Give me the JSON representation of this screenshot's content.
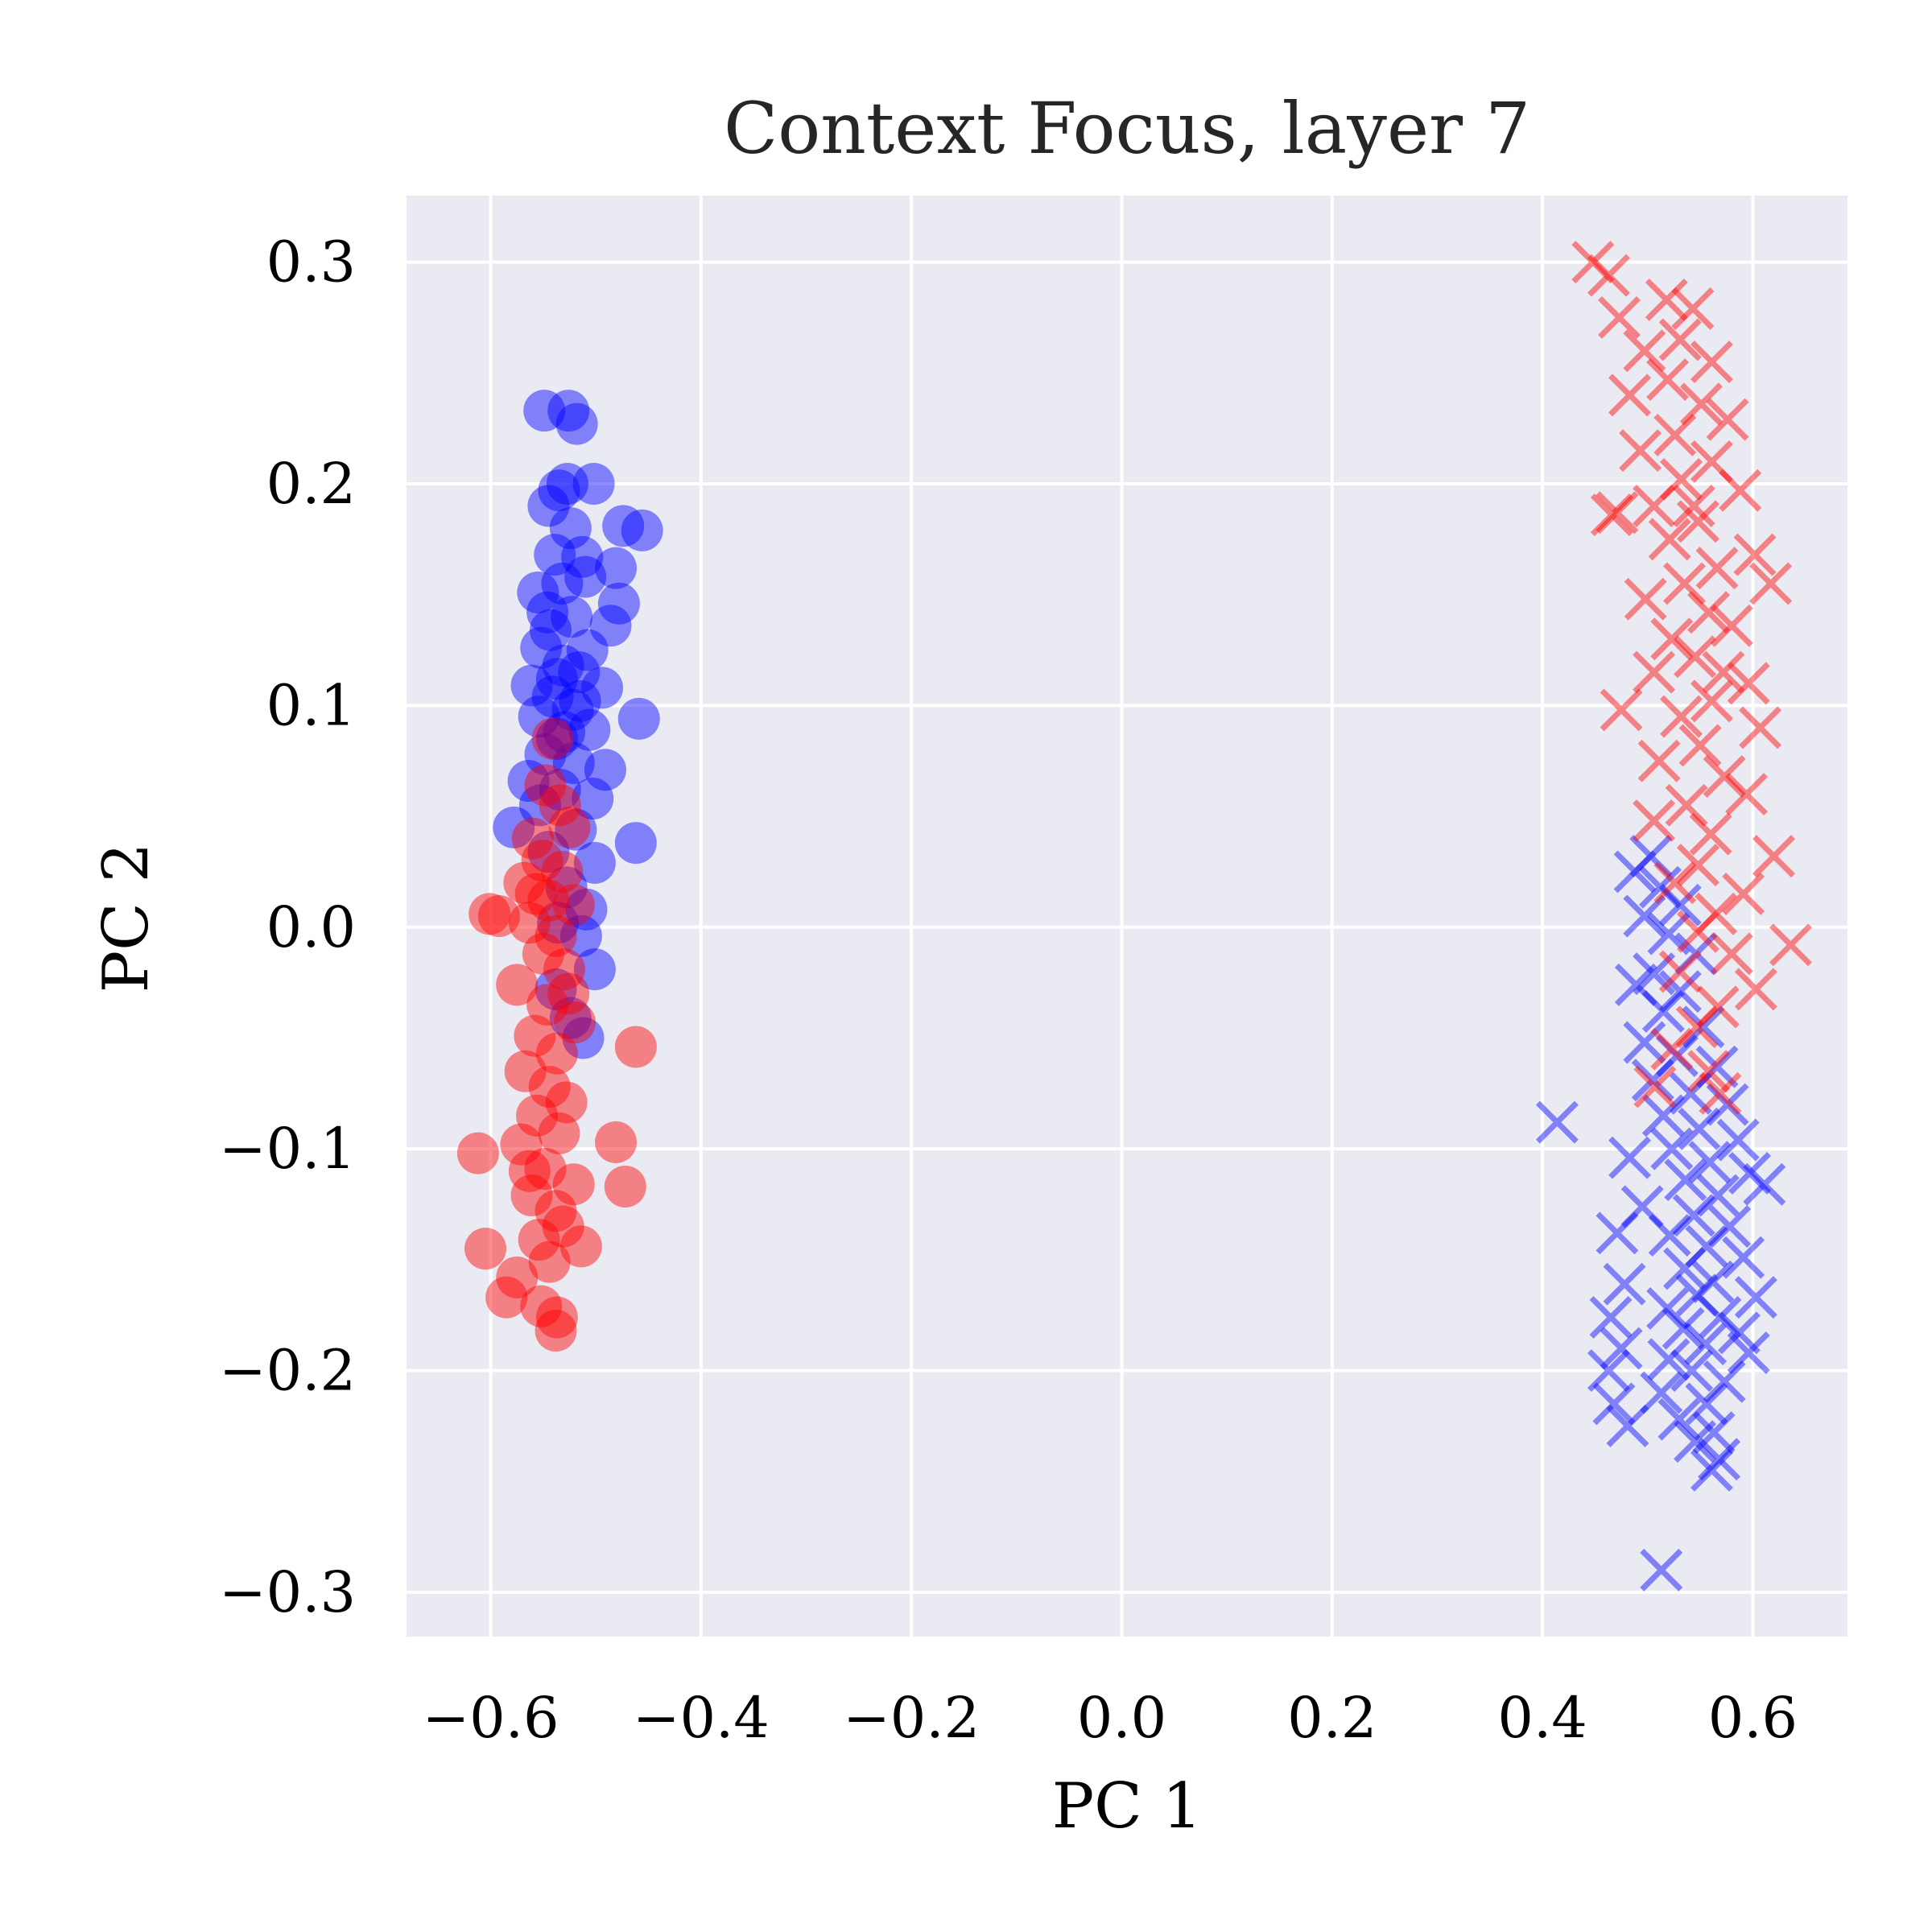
{
  "chart_data": {
    "type": "scatter",
    "title": "Context Focus, layer 7",
    "xlabel": "PC 1",
    "ylabel": "PC 2",
    "xlim": [
      -0.68,
      0.69
    ],
    "ylim": [
      -0.32,
      0.33
    ],
    "xticks": [
      -0.6,
      -0.4,
      -0.2,
      0.0,
      0.2,
      0.4,
      0.6
    ],
    "yticks": [
      -0.3,
      -0.2,
      -0.1,
      0.0,
      0.1,
      0.2,
      0.3
    ],
    "xtick_labels": [
      "−0.6",
      "−0.4",
      "−0.2",
      "0.0",
      "0.2",
      "0.4",
      "0.6"
    ],
    "ytick_labels": [
      "−0.3",
      "−0.2",
      "−0.1",
      "0.0",
      "0.1",
      "0.2",
      "0.3"
    ],
    "grid": true,
    "background": "#eaeaf2",
    "series": [
      {
        "marker": "circle",
        "color": "#0000ff",
        "alpha": 0.45,
        "points": [
          [
            -0.549,
            0.233
          ],
          [
            -0.526,
            0.233
          ],
          [
            -0.518,
            0.227
          ],
          [
            -0.535,
            0.197
          ],
          [
            -0.527,
            0.2
          ],
          [
            -0.545,
            0.19
          ],
          [
            -0.502,
            0.2
          ],
          [
            -0.474,
            0.181
          ],
          [
            -0.456,
            0.179
          ],
          [
            -0.524,
            0.18
          ],
          [
            -0.539,
            0.168
          ],
          [
            -0.513,
            0.167
          ],
          [
            -0.481,
            0.162
          ],
          [
            -0.51,
            0.158
          ],
          [
            -0.555,
            0.151
          ],
          [
            -0.532,
            0.155
          ],
          [
            -0.478,
            0.146
          ],
          [
            -0.486,
            0.136
          ],
          [
            -0.523,
            0.14
          ],
          [
            -0.543,
            0.134
          ],
          [
            -0.508,
            0.125
          ],
          [
            -0.552,
            0.126
          ],
          [
            -0.531,
            0.118
          ],
          [
            -0.516,
            0.115
          ],
          [
            -0.561,
            0.109
          ],
          [
            -0.541,
            0.104
          ],
          [
            -0.494,
            0.108
          ],
          [
            -0.522,
            0.098
          ],
          [
            -0.554,
            0.095
          ],
          [
            -0.459,
            0.094
          ],
          [
            -0.506,
            0.089
          ],
          [
            -0.537,
            0.085
          ],
          [
            -0.548,
            0.078
          ],
          [
            -0.521,
            0.074
          ],
          [
            -0.491,
            0.071
          ],
          [
            -0.564,
            0.066
          ],
          [
            -0.534,
            0.062
          ],
          [
            -0.503,
            0.058
          ],
          [
            -0.553,
            0.055
          ],
          [
            -0.578,
            0.045
          ],
          [
            -0.519,
            0.044
          ],
          [
            -0.462,
            0.038
          ],
          [
            -0.545,
            0.034
          ],
          [
            -0.501,
            0.029
          ],
          [
            -0.528,
            0.018
          ],
          [
            -0.509,
            0.008
          ],
          [
            -0.536,
            0.002
          ],
          [
            -0.514,
            -0.004
          ],
          [
            -0.501,
            -0.019
          ],
          [
            -0.538,
            -0.028
          ],
          [
            -0.524,
            -0.041
          ],
          [
            -0.512,
            -0.05
          ],
          [
            -0.53,
            0.088
          ],
          [
            -0.515,
            0.102
          ],
          [
            -0.546,
            0.142
          ],
          [
            -0.537,
            0.112
          ]
        ]
      },
      {
        "marker": "circle",
        "color": "#ff0000",
        "alpha": 0.45,
        "points": [
          [
            -0.541,
            0.085
          ],
          [
            -0.548,
            0.064
          ],
          [
            -0.534,
            0.055
          ],
          [
            -0.525,
            0.045
          ],
          [
            -0.56,
            0.04
          ],
          [
            -0.551,
            0.03
          ],
          [
            -0.532,
            0.025
          ],
          [
            -0.568,
            0.02
          ],
          [
            -0.545,
            0.012
          ],
          [
            -0.521,
            0.01
          ],
          [
            -0.601,
            0.006
          ],
          [
            -0.592,
            0.005
          ],
          [
            -0.563,
            0.002
          ],
          [
            -0.538,
            -0.004
          ],
          [
            -0.55,
            -0.012
          ],
          [
            -0.53,
            -0.019
          ],
          [
            -0.575,
            -0.026
          ],
          [
            -0.546,
            -0.035
          ],
          [
            -0.52,
            -0.043
          ],
          [
            -0.558,
            -0.049
          ],
          [
            -0.537,
            -0.057
          ],
          [
            -0.462,
            -0.054
          ],
          [
            -0.567,
            -0.065
          ],
          [
            -0.544,
            -0.072
          ],
          [
            -0.528,
            -0.079
          ],
          [
            -0.556,
            -0.085
          ],
          [
            -0.535,
            -0.093
          ],
          [
            -0.571,
            -0.098
          ],
          [
            -0.612,
            -0.102
          ],
          [
            -0.548,
            -0.109
          ],
          [
            -0.481,
            -0.097
          ],
          [
            -0.521,
            -0.116
          ],
          [
            -0.561,
            -0.121
          ],
          [
            -0.538,
            -0.128
          ],
          [
            -0.472,
            -0.117
          ],
          [
            -0.531,
            -0.135
          ],
          [
            -0.554,
            -0.141
          ],
          [
            -0.605,
            -0.145
          ],
          [
            -0.514,
            -0.144
          ],
          [
            -0.544,
            -0.151
          ],
          [
            -0.575,
            -0.158
          ],
          [
            -0.585,
            -0.167
          ],
          [
            -0.552,
            -0.171
          ],
          [
            -0.537,
            -0.176
          ],
          [
            -0.538,
            -0.182
          ],
          [
            -0.563,
            -0.11
          ],
          [
            -0.526,
            -0.03
          ],
          [
            -0.557,
            0.015
          ]
        ]
      },
      {
        "marker": "x",
        "color": "#0000ff",
        "alpha": 0.45,
        "points": [
          [
            0.503,
            0.032
          ],
          [
            0.488,
            0.025
          ],
          [
            0.512,
            0.018
          ],
          [
            0.531,
            0.01
          ],
          [
            0.497,
            0.005
          ],
          [
            0.52,
            -0.003
          ],
          [
            0.546,
            -0.012
          ],
          [
            0.506,
            -0.021
          ],
          [
            0.531,
            -0.029
          ],
          [
            0.489,
            -0.026
          ],
          [
            0.515,
            -0.038
          ],
          [
            0.553,
            -0.045
          ],
          [
            0.497,
            -0.052
          ],
          [
            0.528,
            -0.058
          ],
          [
            0.566,
            -0.063
          ],
          [
            0.505,
            -0.069
          ],
          [
            0.541,
            -0.075
          ],
          [
            0.576,
            -0.08
          ],
          [
            0.515,
            -0.085
          ],
          [
            0.414,
            -0.088
          ],
          [
            0.549,
            -0.091
          ],
          [
            0.586,
            -0.096
          ],
          [
            0.523,
            -0.1
          ],
          [
            0.483,
            -0.104
          ],
          [
            0.559,
            -0.106
          ],
          [
            0.597,
            -0.111
          ],
          [
            0.536,
            -0.114
          ],
          [
            0.567,
            -0.121
          ],
          [
            0.611,
            -0.116
          ],
          [
            0.495,
            -0.126
          ],
          [
            0.544,
            -0.13
          ],
          [
            0.578,
            -0.135
          ],
          [
            0.521,
            -0.139
          ],
          [
            0.556,
            -0.144
          ],
          [
            0.471,
            -0.138
          ],
          [
            0.591,
            -0.149
          ],
          [
            0.535,
            -0.154
          ],
          [
            0.562,
            -0.16
          ],
          [
            0.478,
            -0.161
          ],
          [
            0.547,
            -0.166
          ],
          [
            0.603,
            -0.167
          ],
          [
            0.519,
            -0.172
          ],
          [
            0.569,
            -0.176
          ],
          [
            0.465,
            -0.176
          ],
          [
            0.534,
            -0.181
          ],
          [
            0.587,
            -0.183
          ],
          [
            0.555,
            -0.188
          ],
          [
            0.475,
            -0.19
          ],
          [
            0.52,
            -0.195
          ],
          [
            0.596,
            -0.192
          ],
          [
            0.542,
            -0.2
          ],
          [
            0.463,
            -0.2
          ],
          [
            0.573,
            -0.205
          ],
          [
            0.513,
            -0.21
          ],
          [
            0.556,
            -0.215
          ],
          [
            0.468,
            -0.215
          ],
          [
            0.53,
            -0.222
          ],
          [
            0.563,
            -0.228
          ],
          [
            0.481,
            -0.225
          ],
          [
            0.545,
            -0.232
          ],
          [
            0.568,
            -0.24
          ],
          [
            0.561,
            -0.245
          ],
          [
            0.513,
            -0.29
          ]
        ]
      },
      {
        "marker": "x",
        "color": "#ff0000",
        "alpha": 0.45,
        "points": [
          [
            0.448,
            0.3
          ],
          [
            0.463,
            0.294
          ],
          [
            0.518,
            0.283
          ],
          [
            0.473,
            0.275
          ],
          [
            0.543,
            0.279
          ],
          [
            0.531,
            0.265
          ],
          [
            0.497,
            0.26
          ],
          [
            0.561,
            0.255
          ],
          [
            0.519,
            0.247
          ],
          [
            0.483,
            0.24
          ],
          [
            0.551,
            0.236
          ],
          [
            0.576,
            0.229
          ],
          [
            0.526,
            0.222
          ],
          [
            0.493,
            0.215
          ],
          [
            0.561,
            0.21
          ],
          [
            0.532,
            0.202
          ],
          [
            0.588,
            0.197
          ],
          [
            0.506,
            0.19
          ],
          [
            0.471,
            0.187
          ],
          [
            0.548,
            0.183
          ],
          [
            0.521,
            0.175
          ],
          [
            0.602,
            0.168
          ],
          [
            0.466,
            0.186
          ],
          [
            0.566,
            0.162
          ],
          [
            0.535,
            0.155
          ],
          [
            0.617,
            0.155
          ],
          [
            0.498,
            0.148
          ],
          [
            0.558,
            0.142
          ],
          [
            0.58,
            0.136
          ],
          [
            0.523,
            0.13
          ],
          [
            0.545,
            0.122
          ],
          [
            0.506,
            0.115
          ],
          [
            0.596,
            0.11
          ],
          [
            0.561,
            0.102
          ],
          [
            0.475,
            0.098
          ],
          [
            0.532,
            0.095
          ],
          [
            0.607,
            0.09
          ],
          [
            0.55,
            0.082
          ],
          [
            0.511,
            0.075
          ],
          [
            0.573,
            0.068
          ],
          [
            0.594,
            0.06
          ],
          [
            0.537,
            0.055
          ],
          [
            0.506,
            0.048
          ],
          [
            0.56,
            0.042
          ],
          [
            0.62,
            0.032
          ],
          [
            0.548,
            0.028
          ],
          [
            0.526,
            0.02
          ],
          [
            0.591,
            0.015
          ],
          [
            0.565,
            0.006
          ],
          [
            0.636,
            -0.008
          ],
          [
            0.548,
            -0.002
          ],
          [
            0.58,
            -0.012
          ],
          [
            0.531,
            -0.02
          ],
          [
            0.603,
            -0.028
          ],
          [
            0.567,
            -0.036
          ],
          [
            0.547,
            -0.045
          ],
          [
            0.523,
            -0.055
          ],
          [
            0.558,
            -0.065
          ],
          [
            0.569,
            -0.075
          ],
          [
            0.507,
            -0.072
          ],
          [
            0.544,
            0.19
          ],
          [
            0.572,
            0.115
          ]
        ]
      }
    ]
  }
}
